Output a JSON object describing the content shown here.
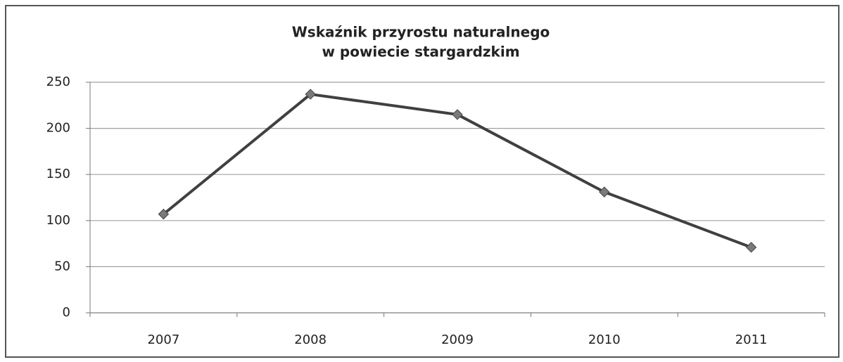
{
  "chart_data": {
    "type": "line",
    "title": [
      "Wskaźnik przyrostu naturalnego",
      "w powiecie stargardzkim"
    ],
    "categories": [
      "2007",
      "2008",
      "2009",
      "2010",
      "2011"
    ],
    "values": [
      107,
      237,
      215,
      131,
      71
    ],
    "color": "#404040",
    "marker_color": "#7a7a7a",
    "ylim": [
      0,
      250
    ],
    "yticks": [
      0,
      50,
      100,
      150,
      200,
      250
    ],
    "grid": true
  }
}
